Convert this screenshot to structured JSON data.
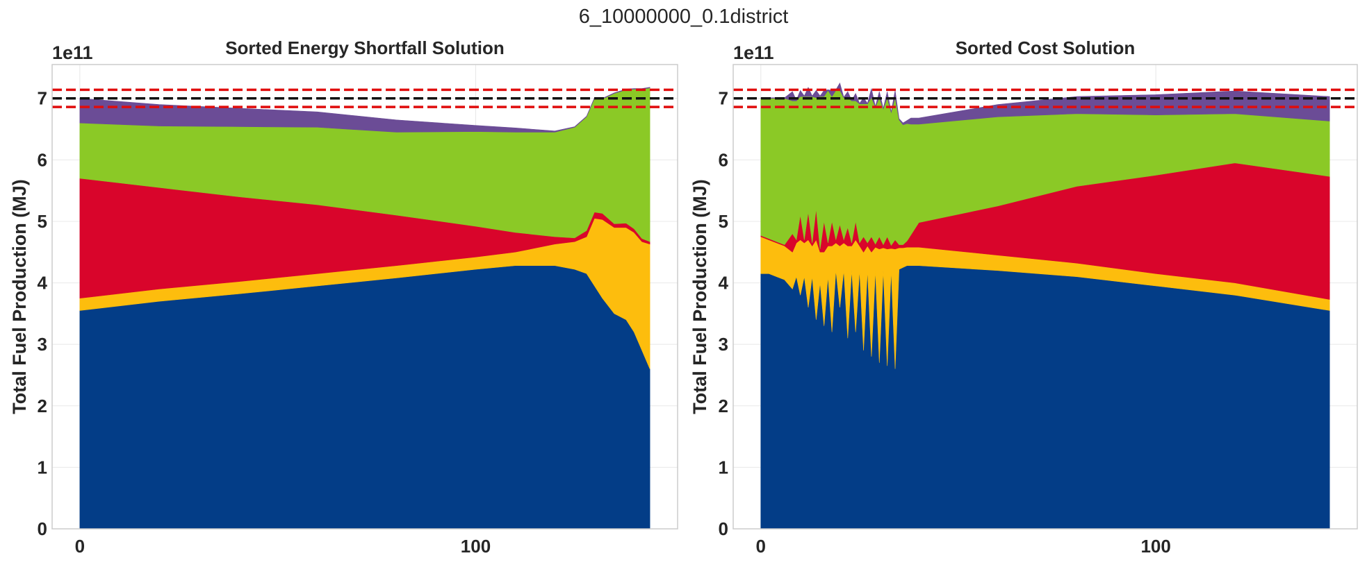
{
  "figure": {
    "title": "6_10000000_0.1district"
  },
  "colors": {
    "layer_1": "#033d87",
    "layer_2": "#fdbd0d",
    "layer_3": "#d9052b",
    "layer_4": "#8bc926",
    "layer_5": "#6b4c96",
    "reference_line": "#111111",
    "tolerance_lines": "#e00d0d",
    "grid": "#e8e8e8"
  },
  "chart_data": [
    {
      "type": "area",
      "stacked": true,
      "title": "Sorted Energy Shortfall Solution",
      "ylabel": "Total Fuel Production (MJ)",
      "xlabel": "",
      "y_offset_label": "1e11",
      "x_ticks": [
        "0",
        "100"
      ],
      "y_ticks": [
        "0",
        "1",
        "2",
        "3",
        "4",
        "5",
        "6",
        "7"
      ],
      "xlim": [
        -7,
        151
      ],
      "ylim": [
        0,
        7.55
      ],
      "grid": true,
      "legend": "none",
      "hlines": [
        {
          "y": 7.0,
          "style": "dashed",
          "color": "reference"
        },
        {
          "y": 7.14,
          "style": "dashed",
          "color": "tolerance"
        },
        {
          "y": 6.86,
          "style": "dashed",
          "color": "tolerance"
        }
      ],
      "x": [
        0,
        20,
        40,
        60,
        80,
        100,
        110,
        120,
        125,
        128,
        130,
        132,
        135,
        138,
        140,
        142,
        144
      ],
      "series": [
        {
          "values": [
            3.55,
            3.7,
            3.82,
            3.95,
            4.08,
            4.22,
            4.28,
            4.28,
            4.22,
            4.15,
            3.95,
            3.75,
            3.5,
            3.4,
            3.2,
            2.9,
            2.6
          ]
        },
        {
          "values": [
            0.2,
            0.2,
            0.2,
            0.2,
            0.2,
            0.2,
            0.22,
            0.35,
            0.45,
            0.6,
            1.1,
            1.28,
            1.4,
            1.5,
            1.62,
            1.77,
            2.03
          ]
        },
        {
          "values": [
            1.95,
            1.65,
            1.38,
            1.12,
            0.82,
            0.5,
            0.32,
            0.12,
            0.06,
            0.1,
            0.1,
            0.1,
            0.06,
            0.07,
            0.06,
            0.05,
            0.04
          ]
        },
        {
          "values": [
            0.9,
            1.0,
            1.14,
            1.26,
            1.35,
            1.54,
            1.63,
            1.7,
            1.8,
            1.85,
            1.85,
            1.86,
            2.12,
            2.17,
            2.27,
            2.43,
            2.5
          ]
        },
        {
          "values": [
            0.4,
            0.35,
            0.3,
            0.25,
            0.2,
            0.1,
            0.07,
            0.02,
            0.01,
            0.01,
            0.01,
            0.01,
            0.01,
            0.01,
            0.01,
            0.01,
            0.01
          ]
        }
      ]
    },
    {
      "type": "area",
      "stacked": true,
      "title": "Sorted Cost Solution",
      "ylabel": "Total Fuel Production (MJ)",
      "xlabel": "",
      "y_offset_label": "1e11",
      "x_ticks": [
        "0",
        "100"
      ],
      "y_ticks": [
        "0",
        "1",
        "2",
        "3",
        "4",
        "5",
        "6",
        "7"
      ],
      "xlim": [
        -7,
        151
      ],
      "ylim": [
        0,
        7.55
      ],
      "grid": true,
      "legend": "none",
      "hlines": [
        {
          "y": 7.0,
          "style": "dashed",
          "color": "reference"
        },
        {
          "y": 7.14,
          "style": "dashed",
          "color": "tolerance"
        },
        {
          "y": 6.86,
          "style": "dashed",
          "color": "tolerance"
        }
      ],
      "x": [
        0,
        2,
        4,
        6,
        8,
        9,
        10,
        11,
        12,
        13,
        14,
        15,
        16,
        17,
        18,
        19,
        20,
        21,
        22,
        23,
        24,
        25,
        26,
        27,
        28,
        29,
        30,
        31,
        32,
        33,
        34,
        35,
        36,
        37,
        38,
        40,
        60,
        80,
        100,
        120,
        144
      ],
      "series": [
        {
          "values": [
            4.15,
            4.15,
            4.1,
            4.05,
            3.9,
            4.1,
            3.8,
            4.1,
            3.6,
            4.1,
            3.4,
            4.0,
            3.3,
            4.1,
            3.2,
            4.2,
            3.6,
            4.2,
            3.1,
            4.2,
            3.2,
            4.2,
            2.9,
            4.2,
            2.8,
            4.2,
            2.7,
            4.2,
            2.65,
            4.2,
            2.6,
            4.22,
            4.25,
            4.28,
            4.28,
            4.28,
            4.2,
            4.1,
            3.95,
            3.8,
            3.55
          ]
        },
        {
          "values": [
            0.6,
            0.55,
            0.55,
            0.55,
            0.6,
            0.55,
            0.9,
            0.55,
            1.1,
            0.5,
            1.3,
            0.5,
            1.2,
            0.5,
            1.4,
            0.45,
            1.0,
            0.45,
            1.5,
            0.4,
            1.5,
            0.4,
            1.6,
            0.4,
            1.7,
            0.38,
            1.85,
            0.37,
            1.9,
            0.36,
            1.95,
            0.35,
            0.32,
            0.3,
            0.3,
            0.3,
            0.25,
            0.22,
            0.2,
            0.2,
            0.18
          ]
        },
        {
          "values": [
            0.02,
            0.02,
            0.02,
            0.02,
            0.3,
            0.05,
            0.4,
            0.05,
            0.45,
            0.05,
            0.5,
            0.05,
            0.5,
            0.05,
            0.4,
            0.05,
            0.35,
            0.05,
            0.3,
            0.05,
            0.3,
            0.05,
            0.25,
            0.05,
            0.25,
            0.05,
            0.2,
            0.05,
            0.2,
            0.05,
            0.15,
            0.05,
            0.05,
            0.1,
            0.2,
            0.4,
            0.8,
            1.25,
            1.6,
            1.95,
            2.0
          ]
        },
        {
          "values": [
            2.23,
            2.28,
            2.33,
            2.38,
            2.16,
            2.26,
            1.93,
            2.33,
            1.88,
            2.38,
            1.81,
            2.48,
            2.03,
            2.48,
            2.03,
            2.43,
            2.18,
            2.31,
            2.11,
            2.31,
            1.96,
            2.26,
            2.16,
            2.26,
            2.26,
            2.23,
            2.26,
            2.21,
            2.26,
            2.16,
            2.31,
            2.03,
            1.95,
            1.91,
            1.8,
            1.6,
            1.45,
            1.18,
            0.98,
            0.8,
            0.9
          ]
        },
        {
          "values": [
            0.01,
            0.01,
            0.01,
            0.01,
            0.15,
            0.01,
            0.1,
            0.01,
            0.15,
            0.01,
            0.12,
            0.01,
            0.1,
            0.01,
            0.1,
            0.01,
            0.12,
            0.01,
            0.1,
            0.01,
            0.12,
            0.01,
            0.1,
            0.01,
            0.15,
            0.01,
            0.1,
            0.01,
            0.1,
            0.01,
            0.12,
            0.02,
            0.03,
            0.05,
            0.1,
            0.1,
            0.2,
            0.28,
            0.33,
            0.37,
            0.4
          ]
        }
      ]
    }
  ]
}
